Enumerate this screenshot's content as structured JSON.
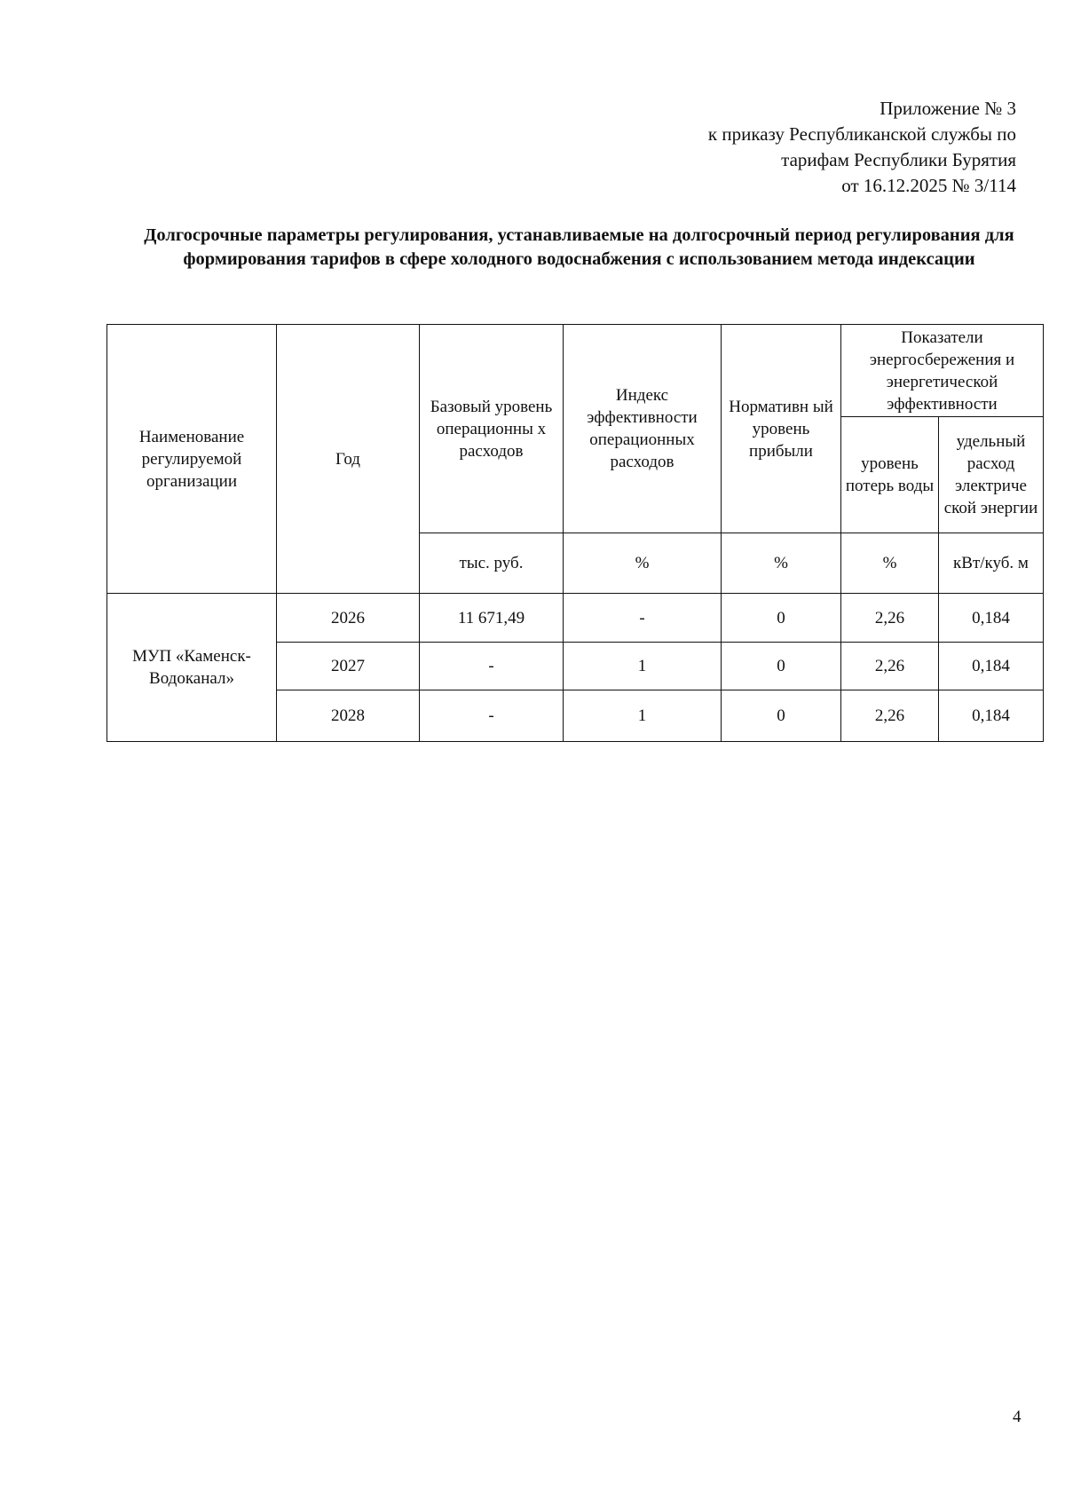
{
  "header": {
    "lines": [
      "Приложение № 3",
      "к приказу Республиканской службы по",
      "тарифам Республики Бурятия",
      "от 16.12.2025 № 3/114"
    ]
  },
  "title": "Долгосрочные параметры регулирования, устанавливаемые на долгосрочный период регулирования для формирования тарифов в сфере холодного водоснабжения с использованием метода индексации",
  "table": {
    "headers": {
      "org": "Наименование регулируемой организации",
      "year": "Год",
      "base": "Базовый уровень операционны х расходов",
      "index": "Индекс эффективности операционных расходов",
      "profit": "Нормативн ый уровень прибыли",
      "energy_group": "Показатели энергосбережения и энергетической эффективности",
      "losses": "уровень потерь воды",
      "electricity": "удельный расход электриче ской энергии"
    },
    "units": [
      "тыс. руб.",
      "%",
      "%",
      "%",
      "кВт/куб. м"
    ],
    "organization": "МУП «Каменск-Водоканал»",
    "rows": [
      {
        "year": "2026",
        "base": "11 671,49",
        "index": "-",
        "profit": "0",
        "losses": "2,26",
        "electricity": "0,184"
      },
      {
        "year": "2027",
        "base": "-",
        "index": "1",
        "profit": "0",
        "losses": "2,26",
        "electricity": "0,184"
      },
      {
        "year": "2028",
        "base": "-",
        "index": "1",
        "profit": "0",
        "losses": "2,26",
        "electricity": "0,184"
      }
    ]
  },
  "page_number": "4"
}
